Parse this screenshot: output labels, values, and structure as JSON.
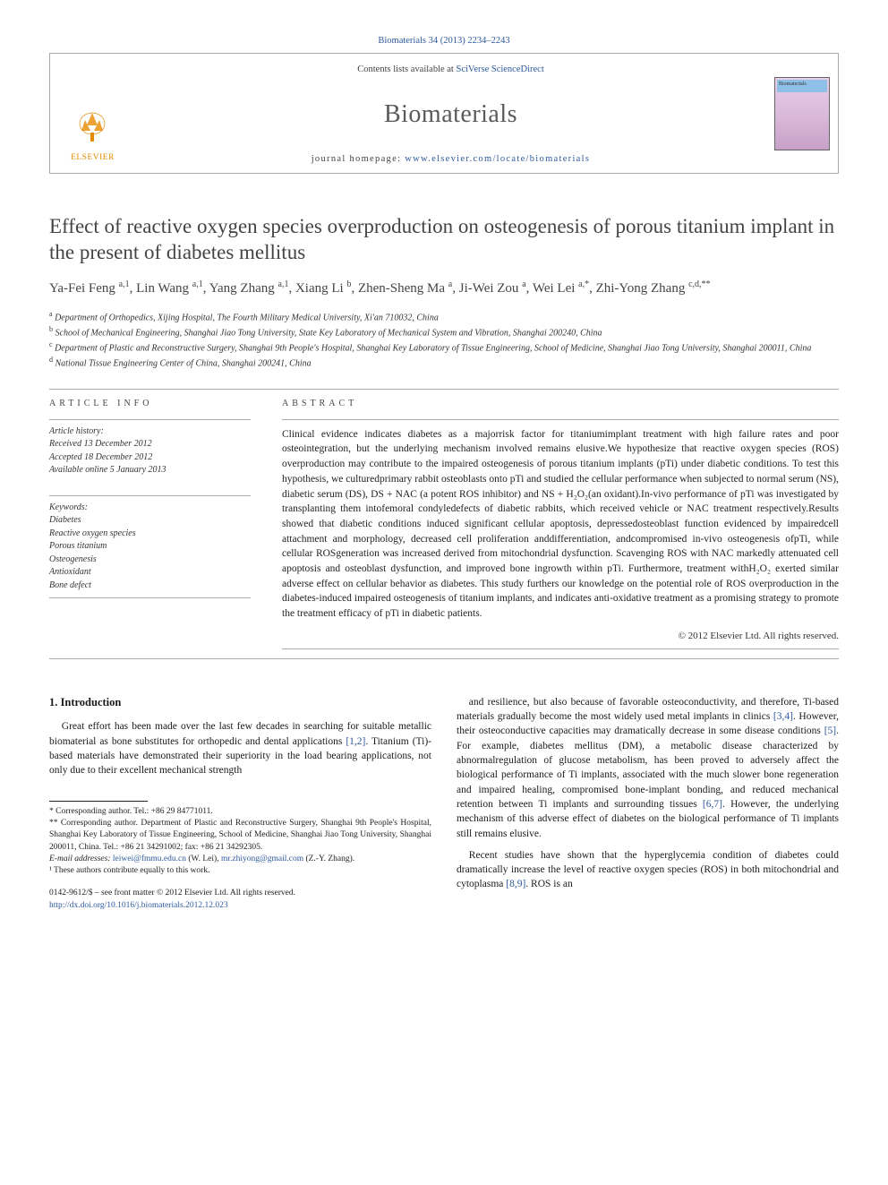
{
  "citation": "Biomaterials 34 (2013) 2234–2243",
  "contents_available": "Contents lists available at ",
  "sciverse": "SciVerse ScienceDirect",
  "journal": "Biomaterials",
  "homepage_label": "journal homepage: ",
  "homepage_url": "www.elsevier.com/locate/biomaterials",
  "elsevier": "ELSEVIER",
  "cover_text": "Biomaterials",
  "title": "Effect of reactive oxygen species overproduction on osteogenesis of porous titanium implant in the present of diabetes mellitus",
  "authors_html": "Ya-Fei Feng <sup>a,1</sup>, Lin Wang <sup>a,1</sup>, Yang Zhang <sup>a,1</sup>, Xiang Li <sup>b</sup>, Zhen-Sheng Ma <sup>a</sup>, Ji-Wei Zou <sup>a</sup>, Wei Lei <sup>a,*</sup>, Zhi-Yong Zhang <sup>c,d,**</sup>",
  "affiliations": [
    "<sup>a</sup> Department of Orthopedics, Xijing Hospital, The Fourth Military Medical University, Xi'an 710032, China",
    "<sup>b</sup> School of Mechanical Engineering, Shanghai Jiao Tong University, State Key Laboratory of Mechanical System and Vibration, Shanghai 200240, China",
    "<sup>c</sup> Department of Plastic and Reconstructive Surgery, Shanghai 9th People's Hospital, Shanghai Key Laboratory of Tissue Engineering, School of Medicine, Shanghai Jiao Tong University, Shanghai 200011, China",
    "<sup>d</sup> National Tissue Engineering Center of China, Shanghai 200241, China"
  ],
  "article_info_label": "ARTICLE INFO",
  "abstract_label": "ABSTRACT",
  "history_label": "Article history:",
  "history": [
    "Received 13 December 2012",
    "Accepted 18 December 2012",
    "Available online 5 January 2013"
  ],
  "keywords_label": "Keywords:",
  "keywords": [
    "Diabetes",
    "Reactive oxygen species",
    "Porous titanium",
    "Osteogenesis",
    "Antioxidant",
    "Bone defect"
  ],
  "abstract": "Clinical evidence indicates diabetes as a majorrisk factor for titaniumimplant treatment with high failure rates and poor osteointegration, but the underlying mechanism involved remains elusive.We hypothesize that reactive oxygen species (ROS) overproduction may contribute to the impaired osteogenesis of porous titanium implants (pTi) under diabetic conditions. To test this hypothesis, we culturedprimary rabbit osteoblasts onto pTi and studied the cellular performance when subjected to normal serum (NS), diabetic serum (DS), DS + NAC (a potent ROS inhibitor) and NS + H₂O₂(an oxidant).In-vivo performance of pTi was investigated by transplanting them intofemoral condyledefects of diabetic rabbits, which received vehicle or NAC treatment respectively.Results showed that diabetic conditions induced significant cellular apoptosis, depressedosteoblast function evidenced by impairedcell attachment and morphology, decreased cell proliferation anddifferentiation, andcompromised in-vivo osteogenesis ofpTi, while cellular ROSgeneration was increased derived from mitochondrial dysfunction. Scavenging ROS with NAC markedly attenuated cell apoptosis and osteoblast dysfunction, and improved bone ingrowth within pTi. Furthermore, treatment withH₂O₂ exerted similar adverse effect on cellular behavior as diabetes. This study furthers our knowledge on the potential role of ROS overproduction in the diabetes-induced impaired osteogenesis of titanium implants, and indicates anti-oxidative treatment as a promising strategy to promote the treatment efficacy of pTi in diabetic patients.",
  "copyright": "© 2012 Elsevier Ltd. All rights reserved.",
  "intro_heading": "1. Introduction",
  "intro_p1": "Great effort has been made over the last few decades in searching for suitable metallic biomaterial as bone substitutes for orthopedic and dental applications [1,2]. Titanium (Ti)-based materials have demonstrated their superiority in the load bearing applications, not only due to their excellent mechanical strength",
  "intro_p2": "and resilience, but also because of favorable osteoconductivity, and therefore, Ti-based materials gradually become the most widely used metal implants in clinics [3,4]. However, their osteoconductive capacities may dramatically decrease in some disease conditions [5]. For example, diabetes mellitus (DM), a metabolic disease characterized by abnormalregulation of glucose metabolism, has been proved to adversely affect the biological performance of Ti implants, associated with the much slower bone regeneration and impaired healing, compromised bone-implant bonding, and reduced mechanical retention between Ti implants and surrounding tissues [6,7]. However, the underlying mechanism of this adverse effect of diabetes on the biological performance of Ti implants still remains elusive.",
  "intro_p3": "Recent studies have shown that the hyperglycemia condition of diabetes could dramatically increase the level of reactive oxygen species (ROS) in both mitochondrial and cytoplasma [8,9]. ROS is an",
  "footnote_corr1": "* Corresponding author. Tel.: +86 29 84771011.",
  "footnote_corr2": "** Corresponding author. Department of Plastic and Reconstructive Surgery, Shanghai 9th People's Hospital, Shanghai Key Laboratory of Tissue Engineering, School of Medicine, Shanghai Jiao Tong University, Shanghai 200011, China. Tel.: +86 21 34291002; fax: +86 21 34292305.",
  "footnote_email_label": "E-mail addresses:",
  "footnote_email1": "leiwei@fmmu.edu.cn",
  "footnote_email1_who": " (W. Lei), ",
  "footnote_email2": "mr.zhiyong@gmail.com",
  "footnote_email2_who": " (Z.-Y. Zhang).",
  "footnote_equal": "¹ These authors contribute equally to this work.",
  "issn_line": "0142-9612/$ – see front matter © 2012 Elsevier Ltd. All rights reserved.",
  "doi": "http://dx.doi.org/10.1016/j.biomaterials.2012.12.023",
  "ref_links": {
    "r12": "[1,2]",
    "r34": "[3,4]",
    "r5": "[5]",
    "r67": "[6,7]",
    "r89": "[8,9]"
  },
  "colors": {
    "link": "#2e5a9e",
    "rule": "#aaa",
    "elsevier": "#e68a00",
    "title": "#444"
  }
}
